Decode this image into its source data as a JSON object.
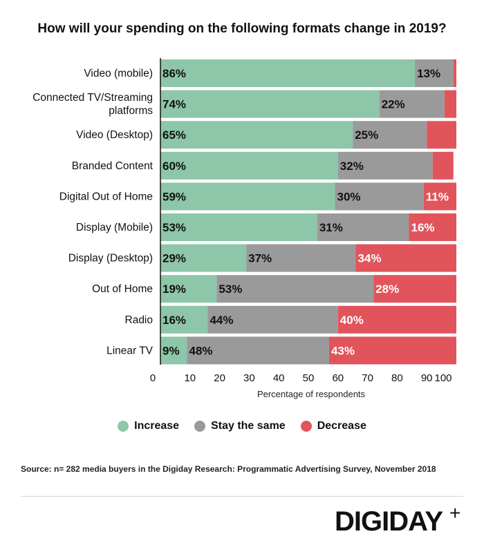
{
  "title": "How will your spending on the following formats change in 2019?",
  "xlabel": "Percentage of respondents",
  "colors": {
    "increase": "#8dc6a8",
    "same": "#9a9a9a",
    "decrease": "#e2545b"
  },
  "legend": [
    {
      "label": "Increase",
      "color": "#8dc6a8"
    },
    {
      "label": "Stay the same",
      "color": "#9a9a9a"
    },
    {
      "label": "Decrease",
      "color": "#e2545b"
    }
  ],
  "source": "Source: n= 282 media buyers in the Digiday Research: Programmatic Advertising Survey, November 2018",
  "logo": {
    "text": "DIGIDAY",
    "symbol": "+"
  },
  "chart_data": {
    "type": "bar",
    "orientation": "horizontal",
    "stacked": true,
    "title": "How will your spending on the following formats change in 2019?",
    "xlabel": "Percentage of respondents",
    "xlim": [
      0,
      100
    ],
    "xticks": [
      "0",
      "10",
      "20",
      "30",
      "40",
      "50",
      "60",
      "70",
      "80",
      "90",
      "100"
    ],
    "legend_position": "bottom",
    "categories": [
      [
        "Video (mobile)"
      ],
      [
        "Connected TV/Streaming",
        "platforms"
      ],
      [
        "Video (Desktop)"
      ],
      [
        "Branded Content"
      ],
      [
        "Digital Out of Home"
      ],
      [
        "Display (Mobile)"
      ],
      [
        "Display (Desktop)"
      ],
      [
        "Out of Home"
      ],
      [
        "Radio"
      ],
      [
        "Linear TV"
      ]
    ],
    "series": [
      {
        "name": "Increase",
        "values": [
          86,
          74,
          65,
          60,
          59,
          53,
          29,
          19,
          16,
          9
        ],
        "labels": [
          "86%",
          "74%",
          "65%",
          "60%",
          "59%",
          "53%",
          "29%",
          "19%",
          "16%",
          "9%"
        ]
      },
      {
        "name": "Stay the same",
        "values": [
          13,
          22,
          25,
          32,
          30,
          31,
          37,
          53,
          44,
          48
        ],
        "labels": [
          "13%",
          "22%",
          "25%",
          "32%",
          "30%",
          "31%",
          "37%",
          "53%",
          "44%",
          "48%"
        ]
      },
      {
        "name": "Decrease",
        "values": [
          1,
          4,
          10,
          7,
          11,
          16,
          34,
          28,
          40,
          43
        ],
        "labels": [
          "",
          "",
          "",
          "",
          "11%",
          "16%",
          "34%",
          "28%",
          "40%",
          "43%"
        ]
      }
    ]
  }
}
